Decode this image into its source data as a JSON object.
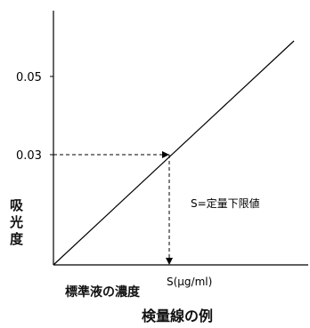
{
  "chart_data": {
    "type": "line",
    "title": "検量線の例",
    "xlabel": "標準液の濃度",
    "ylabel": "吸光度",
    "y_ticks": [
      "0.03",
      "0.05"
    ],
    "x_marker_label": "S(μg/ml)",
    "annotation": "S=定量下限値",
    "grid": false,
    "series": [
      {
        "x": [
          "0",
          "S"
        ],
        "y": [
          0,
          0.03
        ]
      }
    ],
    "ylim": [
      0,
      0.065
    ]
  }
}
